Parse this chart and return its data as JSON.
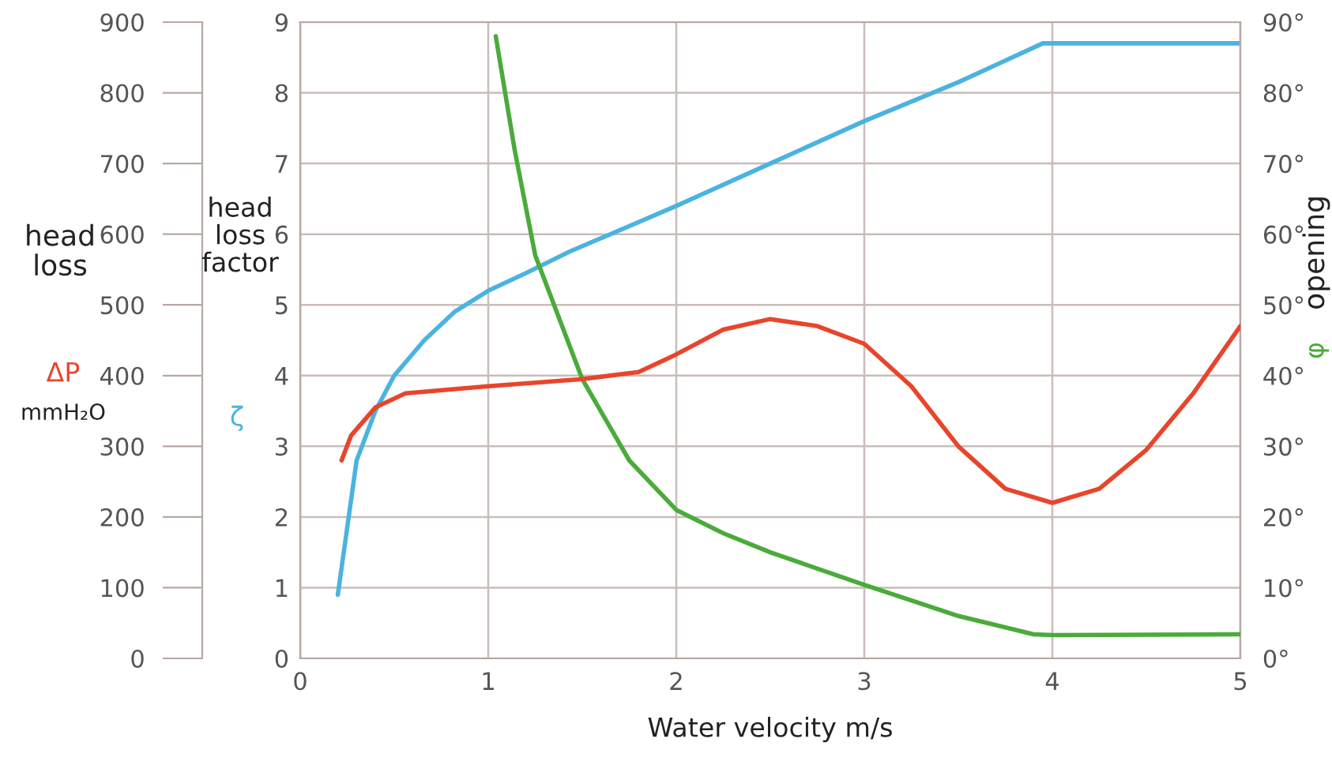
{
  "chart_data": {
    "type": "line",
    "xlabel": "Water velocity m/s",
    "ylabel": "head\nloss\nfactor",
    "y2label": "opening",
    "y3label": "head\nloss",
    "annotations": [
      "mmH₂O"
    ],
    "xlim": [
      0,
      5
    ],
    "xticks": [
      0,
      1,
      2,
      3,
      4,
      5
    ],
    "ylim": [
      0,
      9
    ],
    "yticks": [
      0,
      1,
      2,
      3,
      4,
      5,
      6,
      7,
      8,
      9
    ],
    "y2lim": [
      0,
      90
    ],
    "y2ticks": [
      {
        "value": 0,
        "label": "0°"
      },
      {
        "value": 10,
        "label": "10°"
      },
      {
        "value": 20,
        "label": "20°"
      },
      {
        "value": 30,
        "label": "30°"
      },
      {
        "value": 40,
        "label": "40°"
      },
      {
        "value": 50,
        "label": "50°"
      },
      {
        "value": 60,
        "label": "60°"
      },
      {
        "value": 70,
        "label": "70°"
      },
      {
        "value": 80,
        "label": "80°"
      },
      {
        "value": 90,
        "label": "90°"
      }
    ],
    "y3lim": [
      0,
      900
    ],
    "y3ticks": [
      0,
      100,
      200,
      300,
      400,
      500,
      600,
      700,
      800,
      900
    ],
    "grid": true,
    "marker": "none",
    "line_style": "solid",
    "series": [
      {
        "name": "ζ",
        "color": "#4bb3e0",
        "x": [
          0.2,
          0.25,
          0.3,
          0.4,
          0.5,
          0.66,
          0.82,
          1.0,
          1.2,
          1.43,
          2.0,
          2.5,
          3.0,
          3.5,
          3.95,
          5.0
        ],
        "values": [
          0.9,
          1.85,
          2.8,
          3.5,
          4.0,
          4.5,
          4.9,
          5.2,
          5.45,
          5.75,
          6.4,
          7.0,
          7.6,
          8.15,
          8.7,
          8.7
        ]
      },
      {
        "name": "ΔP",
        "color": "#e8452c",
        "axis": "y3",
        "x": [
          0.22,
          0.27,
          0.4,
          0.56,
          1.0,
          1.5,
          1.8,
          2.0,
          2.25,
          2.5,
          2.75,
          3.0,
          3.25,
          3.5,
          3.75,
          4.0,
          4.25,
          4.5,
          4.75,
          5.0
        ],
        "values": [
          280,
          315,
          355,
          375,
          385,
          395,
          405,
          430,
          465,
          480,
          470,
          445,
          385,
          300,
          240,
          220,
          240,
          295,
          375,
          470
        ]
      },
      {
        "name": "φ",
        "color": "#4aab3a",
        "axis": "y2",
        "x": [
          1.04,
          1.14,
          1.25,
          1.5,
          1.75,
          2.0,
          2.25,
          2.5,
          3.0,
          3.5,
          3.9,
          4.0,
          5.0
        ],
        "values": [
          88,
          72,
          57,
          39.5,
          28,
          21,
          17.7,
          15,
          10.4,
          6,
          3.4,
          3.3,
          3.4
        ]
      }
    ]
  }
}
